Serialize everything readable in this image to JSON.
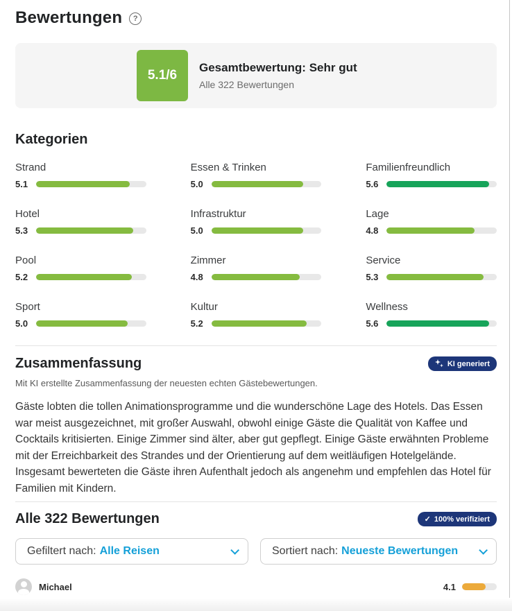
{
  "page": {
    "title": "Bewertungen",
    "help_icon": "?"
  },
  "overview": {
    "score": "5.1/6",
    "title": "Gesamtbewertung: Sehr gut",
    "subtitle": "Alle 322 Bewertungen"
  },
  "categories": {
    "heading": "Kategorien",
    "items": [
      {
        "label": "Strand",
        "score": "5.1",
        "percent": 85.0,
        "color": "#85bb40"
      },
      {
        "label": "Essen & Trinken",
        "score": "5.0",
        "percent": 83.3,
        "color": "#85bb40"
      },
      {
        "label": "Familienfreundlich",
        "score": "5.6",
        "percent": 93.3,
        "color": "#17a45a"
      },
      {
        "label": "Hotel",
        "score": "5.3",
        "percent": 88.3,
        "color": "#85bb40"
      },
      {
        "label": "Infrastruktur",
        "score": "5.0",
        "percent": 83.3,
        "color": "#85bb40"
      },
      {
        "label": "Lage",
        "score": "4.8",
        "percent": 80.0,
        "color": "#85bb40"
      },
      {
        "label": "Pool",
        "score": "5.2",
        "percent": 86.7,
        "color": "#85bb40"
      },
      {
        "label": "Zimmer",
        "score": "4.8",
        "percent": 80.0,
        "color": "#85bb40"
      },
      {
        "label": "Service",
        "score": "5.3",
        "percent": 88.3,
        "color": "#85bb40"
      },
      {
        "label": "Sport",
        "score": "5.0",
        "percent": 83.3,
        "color": "#85bb40"
      },
      {
        "label": "Kultur",
        "score": "5.2",
        "percent": 86.7,
        "color": "#85bb40"
      },
      {
        "label": "Wellness",
        "score": "5.6",
        "percent": 93.3,
        "color": "#17a45a"
      }
    ]
  },
  "summary": {
    "heading": "Zusammenfassung",
    "badge_label": "KI generiert",
    "subtitle": "Mit KI erstellte Zusammenfassung der neuesten echten Gästebewertungen.",
    "text": "Gäste lobten die tollen Animationsprogramme und die wunderschöne Lage des Hotels. Das Essen war meist ausgezeichnet, mit großer Auswahl, obwohl einige Gäste die Qualität von Kaffee und Cocktails kritisierten. Einige Zimmer sind älter, aber gut gepflegt. Einige Gäste erwähnten Probleme mit der Erreichbarkeit des Strandes und der Orientierung auf dem weitläufigen Hotelgelände. Insgesamt bewerteten die Gäste ihren Aufenthalt jedoch als angenehm und empfehlen das Hotel für Familien mit Kindern."
  },
  "reviews": {
    "heading": "Alle 322 Bewertungen",
    "verified_badge": "100% verifiziert",
    "verified_check": "✓",
    "filter_label": "Gefiltert nach:",
    "filter_value": "Alle Reisen",
    "sort_label": "Sortiert nach:",
    "sort_value": "Neueste Bewertungen",
    "first_review": {
      "name": "Michael",
      "score": "4.1",
      "percent": 68.3,
      "color": "#ecaa3b"
    }
  },
  "colors": {
    "light_green": "#85bb40",
    "dark_green": "#17a45a",
    "badge_green": "#7db843",
    "navy": "#1d3679",
    "link_blue": "#15a0d8",
    "orange": "#ecaa3b"
  }
}
